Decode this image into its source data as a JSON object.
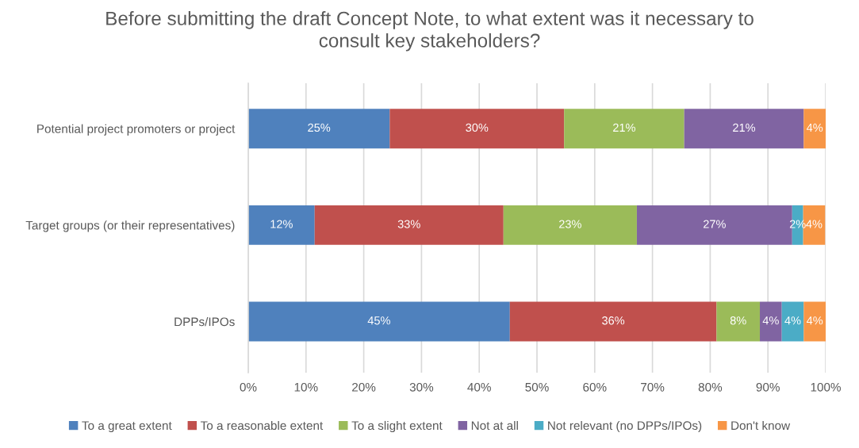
{
  "chart_data": {
    "type": "bar",
    "orientation": "horizontal",
    "stacked": true,
    "title": "Before submitting the draft Concept Note, to what extent was it necessary to\nconsult key stakeholders?",
    "categories": [
      "Potential project promoters or project",
      "Target groups (or their representatives)",
      "DPPs/IPOs"
    ],
    "series": [
      {
        "name": "To a great extent",
        "color": "#4f81bd",
        "values": [
          24.5,
          11.5,
          45.3
        ],
        "value_labels": [
          "25%",
          "12%",
          "45%"
        ]
      },
      {
        "name": "To a reasonable extent",
        "color": "#c0504d",
        "values": [
          30.2,
          32.7,
          35.8
        ],
        "value_labels": [
          "30%",
          "33%",
          "36%"
        ]
      },
      {
        "name": "To a slight extent",
        "color": "#9bbb59",
        "values": [
          20.8,
          23.1,
          7.5
        ],
        "value_labels": [
          "21%",
          "23%",
          "8%"
        ]
      },
      {
        "name": "Not at all",
        "color": "#8064a2",
        "values": [
          20.7,
          26.9,
          3.8
        ],
        "value_labels": [
          "21%",
          "27%",
          "4%"
        ]
      },
      {
        "name": "Not relevant (no DPPs/IPOs)",
        "color": "#4bacc6",
        "values": [
          null,
          1.9,
          3.8
        ],
        "value_labels": [
          null,
          "2%",
          "4%"
        ]
      },
      {
        "name": "Don't know",
        "color": "#f79646",
        "values": [
          3.8,
          3.8,
          3.8
        ],
        "value_labels": [
          "4%",
          "4%",
          "4%"
        ]
      }
    ],
    "xlim": [
      0,
      100
    ],
    "xticks": [
      {
        "value": 0,
        "label": "0%"
      },
      {
        "value": 10,
        "label": "10%"
      },
      {
        "value": 20,
        "label": "20%"
      },
      {
        "value": 30,
        "label": "30%"
      },
      {
        "value": 40,
        "label": "40%"
      },
      {
        "value": 50,
        "label": "50%"
      },
      {
        "value": 60,
        "label": "60%"
      },
      {
        "value": 70,
        "label": "70%"
      },
      {
        "value": 80,
        "label": "80%"
      },
      {
        "value": 90,
        "label": "90%"
      },
      {
        "value": 100,
        "label": "100%"
      }
    ],
    "grid": "x",
    "legend": "bottom"
  }
}
